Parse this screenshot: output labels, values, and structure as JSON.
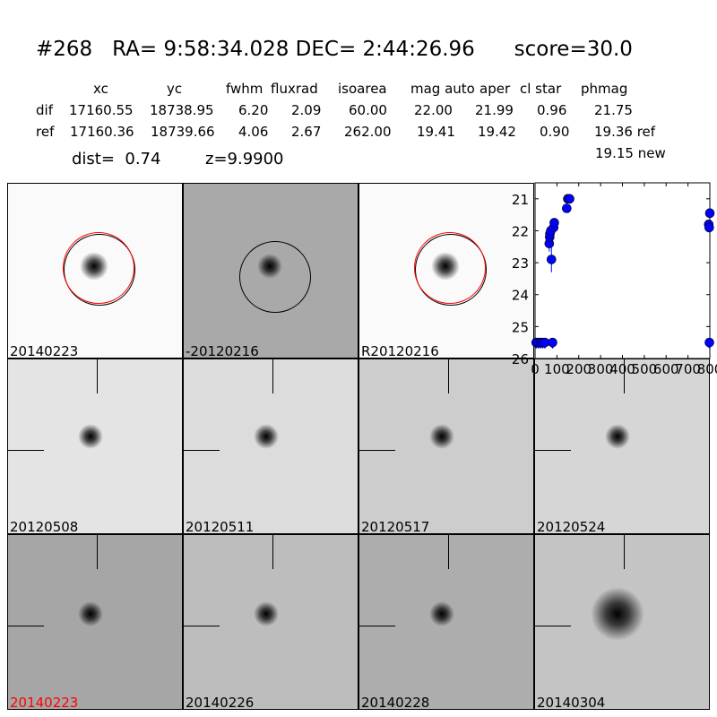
{
  "header": {
    "title": "#268   RA= 9:58:34.028 DEC= 2:44:26.96      score=30.0"
  },
  "table": {
    "columns": [
      "xc",
      "yc",
      "fwhm",
      "fluxrad",
      "isoarea",
      "mag auto",
      "aper",
      "cl star",
      "phmag"
    ],
    "rows": [
      {
        "label": "dif",
        "values": [
          "17160.55",
          "18738.95",
          "6.20",
          "2.09",
          "60.00",
          "22.00",
          "21.99",
          "0.96",
          "21.75"
        ]
      },
      {
        "label": "ref",
        "values": [
          "17160.36",
          "18739.66",
          "4.06",
          "2.67",
          "262.00",
          "19.41",
          "19.42",
          "0.90",
          "19.36 ref"
        ]
      }
    ],
    "extra": "19.15 new",
    "dist": "dist=  0.74",
    "z": "z=9.9900"
  },
  "stamps": [
    {
      "label": "20140223",
      "color": "#000000"
    },
    {
      "label": "-20120216",
      "color": "#000000"
    },
    {
      "label": "R20120216",
      "color": "#000000"
    },
    {
      "label": "20120508",
      "color": "#000000"
    },
    {
      "label": "20120511",
      "color": "#000000"
    },
    {
      "label": "20120517",
      "color": "#000000"
    },
    {
      "label": "20120524",
      "color": "#000000"
    },
    {
      "label": "20140223",
      "color": "#ff0000"
    },
    {
      "label": "20140226",
      "color": "#000000"
    },
    {
      "label": "20140228",
      "color": "#000000"
    },
    {
      "label": "20140304",
      "color": "#000000"
    }
  ],
  "chart_data": {
    "type": "scatter",
    "xlim": [
      0,
      800
    ],
    "ylim": [
      26,
      20.5
    ],
    "y_inverted": true,
    "xticks": [
      "0",
      "100",
      "200",
      "300",
      "400",
      "500",
      "600",
      "700",
      "800"
    ],
    "yticks": [
      "21",
      "22",
      "23",
      "24",
      "25",
      "26"
    ],
    "marker_color": "#0000ff",
    "points": [
      {
        "x": 5,
        "y": 25.5,
        "limit": true
      },
      {
        "x": 15,
        "y": 25.5,
        "limit": true
      },
      {
        "x": 25,
        "y": 25.5,
        "limit": true
      },
      {
        "x": 35,
        "y": 25.5,
        "limit": true
      },
      {
        "x": 45,
        "y": 25.5,
        "limit": true
      },
      {
        "x": 80,
        "y": 25.5,
        "limit": true
      },
      {
        "x": 65,
        "y": 22.4,
        "err": 0.25
      },
      {
        "x": 67,
        "y": 22.2,
        "err": 0.2
      },
      {
        "x": 68,
        "y": 22.1,
        "err": 0.2
      },
      {
        "x": 72,
        "y": 22.0,
        "err": 0.2
      },
      {
        "x": 75,
        "y": 22.9,
        "err": 0.4
      },
      {
        "x": 85,
        "y": 21.9,
        "err": 0.15
      },
      {
        "x": 88,
        "y": 21.75,
        "err": 0.15
      },
      {
        "x": 145,
        "y": 21.3,
        "err": 0.05
      },
      {
        "x": 150,
        "y": 21.0,
        "err": 0.05
      },
      {
        "x": 158,
        "y": 21.0,
        "err": 0.05
      },
      {
        "x": 795,
        "y": 21.8,
        "err": 0.05
      },
      {
        "x": 797,
        "y": 21.9,
        "err": 0.05
      },
      {
        "x": 800,
        "y": 21.45,
        "err": 0.05
      },
      {
        "x": 798,
        "y": 25.5,
        "limit": true
      }
    ]
  }
}
